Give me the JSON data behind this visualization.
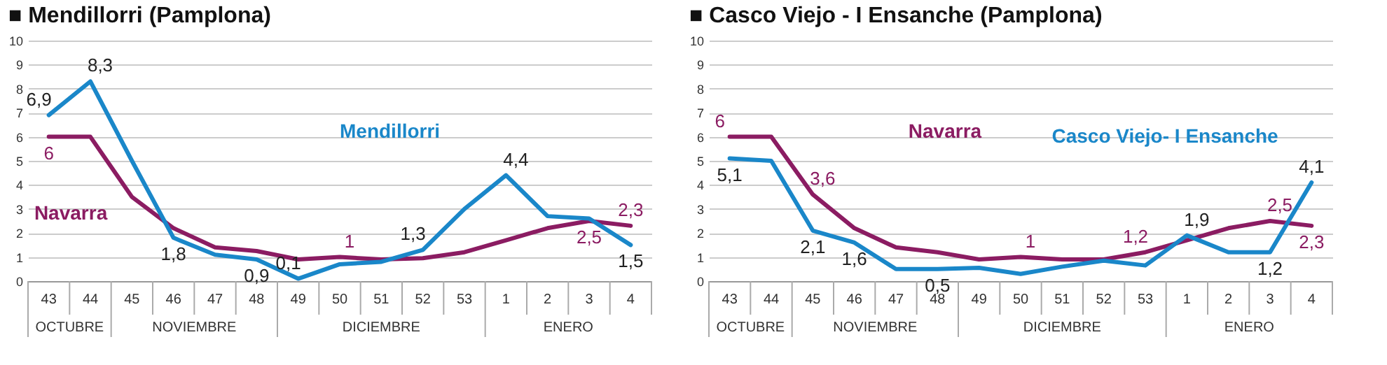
{
  "chart_data": [
    {
      "type": "line",
      "title": "■ Mendillorri (Pamplona)",
      "categories": [
        "43",
        "44",
        "45",
        "46",
        "47",
        "48",
        "49",
        "50",
        "51",
        "52",
        "53",
        "1",
        "2",
        "3",
        "4"
      ],
      "series": [
        {
          "name": "Navarra",
          "color": "#8b1c62",
          "values": [
            6,
            6,
            3.5,
            2.2,
            1.4,
            1.25,
            0.9,
            1,
            0.9,
            0.95,
            1.2,
            1.7,
            2.2,
            2.5,
            2.3
          ],
          "value_labels": [
            "6",
            null,
            null,
            null,
            null,
            null,
            null,
            "1",
            null,
            null,
            null,
            null,
            null,
            "2,5",
            "2,3"
          ]
        },
        {
          "name": "Mendillorri",
          "color": "#1a87c9",
          "values": [
            6.9,
            8.3,
            5.0,
            1.8,
            1.1,
            0.9,
            0.1,
            0.7,
            0.8,
            1.3,
            3.0,
            4.4,
            2.7,
            2.6,
            1.5
          ],
          "value_labels": [
            "6,9",
            "8,3",
            null,
            "1,8",
            null,
            "0,9",
            "0,1",
            null,
            null,
            "1,3",
            null,
            "4,4",
            null,
            null,
            "1,5"
          ]
        }
      ],
      "annotations": [
        "OCTUBRE",
        "NOVIEMBRE",
        "DICIEMBRE",
        "ENERO"
      ],
      "ylim": [
        0,
        10
      ],
      "yticks": [
        0,
        1,
        2,
        3,
        4,
        5,
        6,
        7,
        8,
        9,
        10
      ],
      "grid": "y",
      "legend": false,
      "marker": "none",
      "line_style": "solid"
    },
    {
      "type": "line",
      "title": "■ Casco Viejo - I Ensanche (Pamplona)",
      "categories": [
        "43",
        "44",
        "45",
        "46",
        "47",
        "48",
        "49",
        "50",
        "51",
        "52",
        "53",
        "1",
        "2",
        "3",
        "4"
      ],
      "series": [
        {
          "name": "Navarra",
          "color": "#8b1c62",
          "values": [
            6,
            6,
            3.6,
            2.2,
            1.4,
            1.2,
            0.9,
            1,
            0.9,
            0.9,
            1.2,
            1.7,
            2.2,
            2.5,
            2.3
          ],
          "value_labels": [
            "6",
            null,
            "3,6",
            null,
            null,
            null,
            null,
            "1",
            null,
            null,
            "1,2",
            null,
            null,
            "2,5",
            "2,3"
          ]
        },
        {
          "name": "Casco Viejo- I Ensanche",
          "color": "#1a87c9",
          "values": [
            5.1,
            5.0,
            2.1,
            1.6,
            0.5,
            0.5,
            0.55,
            0.3,
            0.6,
            0.85,
            0.65,
            1.9,
            1.2,
            1.2,
            4.1
          ],
          "value_labels": [
            "5,1",
            null,
            "2,1",
            "1,6",
            null,
            "0,5",
            null,
            null,
            null,
            null,
            null,
            "1,9",
            null,
            "1,2",
            "4,1"
          ]
        }
      ],
      "annotations": [
        "OCTUBRE",
        "NOVIEMBRE",
        "DICIEMBRE",
        "ENERO"
      ],
      "ylim": [
        0,
        10
      ],
      "yticks": [
        0,
        1,
        2,
        3,
        4,
        5,
        6,
        7,
        8,
        9,
        10
      ],
      "grid": "y",
      "legend": false,
      "marker": "none",
      "line_style": "solid"
    }
  ]
}
